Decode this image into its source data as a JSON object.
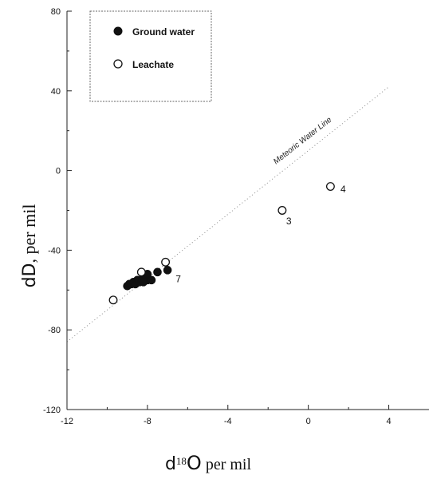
{
  "chart_data": {
    "type": "scatter",
    "xlabel": "d18O per mil",
    "ylabel": "dD, per mil",
    "xlim": [
      -12,
      6
    ],
    "ylim": [
      -120,
      80
    ],
    "x_ticks": [
      -12,
      -8,
      -4,
      0,
      4
    ],
    "x_tick_labels": [
      "-12",
      "-8",
      "-4",
      "0",
      "4"
    ],
    "y_ticks": [
      -120,
      -80,
      -40,
      0,
      40,
      80
    ],
    "y_tick_labels": [
      "-120",
      "-80",
      "-40",
      "0",
      "40",
      "80"
    ],
    "grid": false,
    "legend_placement": "top-left",
    "series": [
      {
        "name": "Ground water",
        "marker": "filled-circle",
        "x": [
          -9.0,
          -8.9,
          -8.8,
          -8.7,
          -8.6,
          -8.5,
          -8.4,
          -8.3,
          -8.2,
          -8.1,
          -8.0,
          -8.2,
          -8.0,
          -7.8,
          -7.5,
          -7.0
        ],
        "y": [
          -58,
          -57,
          -57,
          -56,
          -57,
          -55,
          -56,
          -55,
          -54,
          -53,
          -55,
          -56,
          -52,
          -55,
          -51,
          -50
        ]
      },
      {
        "name": "Leachate",
        "marker": "open-circle",
        "x": [
          -9.7,
          -8.3,
          -7.1,
          -1.3,
          1.1
        ],
        "y": [
          -65,
          -51,
          -46,
          -20,
          -8
        ]
      }
    ],
    "reference_line": {
      "label": "Meteoric Water Line",
      "slope": 8,
      "intercept": 10,
      "x_range": [
        -12,
        4
      ]
    },
    "annotations": [
      {
        "text": "4",
        "x": 1.6,
        "y": -11
      },
      {
        "text": "3",
        "x": -1.1,
        "y": -27
      },
      {
        "text": "7",
        "x": -6.6,
        "y": -56
      }
    ]
  },
  "legend": {
    "items": [
      {
        "label": "Ground water",
        "marker": "filled-circle"
      },
      {
        "label": "Leachate",
        "marker": "open-circle"
      }
    ]
  },
  "axes": {
    "y_title_main": "d",
    "y_title_big": "D",
    "y_title_rest": ", per mil",
    "x_title_main": "d",
    "x_title_sup": "18",
    "x_title_big": "O",
    "x_title_rest": " per mil"
  },
  "mwl_label": "Meteoric Water Line"
}
